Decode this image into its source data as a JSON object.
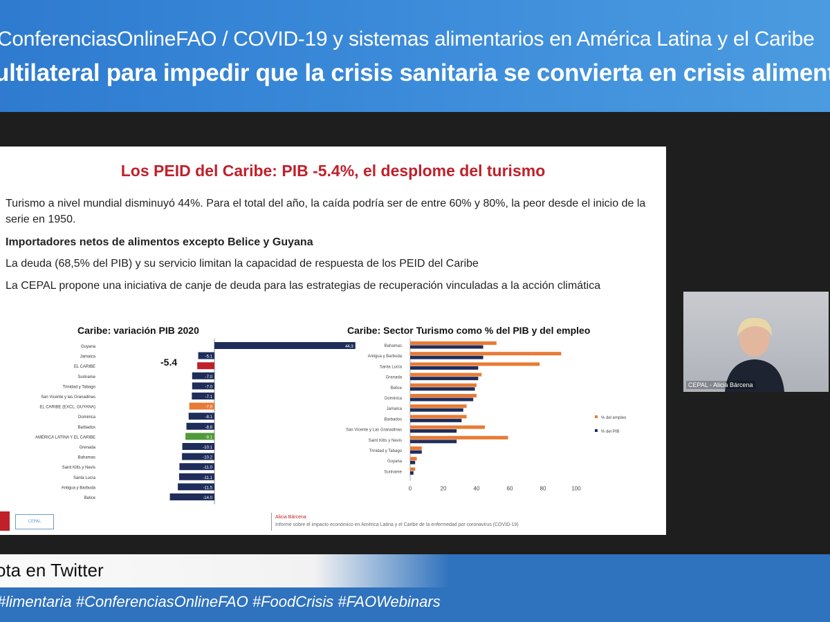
{
  "banner": {
    "line1": "ConferenciasOnlineFAO / COVID-19 y sistemas alimentarios en América Latina y el Caribe",
    "line2": "ultilateral para impedir que la crisis sanitaria se convierta en crisis alimentaria"
  },
  "slide": {
    "title": "Los PEID del Caribe: PIB -5.4%, el desplome del turismo",
    "bullets": [
      "Turismo a nivel mundial disminuyó 44%. Para el total del año, la caída podría ser de entre 60% y 80%, la peor desde el inicio de la serie en 1950.",
      "Importadores netos de alimentos excepto Belice y Guyana",
      "La deuda (68,5% del PIB) y su servicio limitan la capacidad de respuesta de los PEID del Caribe",
      "La CEPAL propone una iniciativa de canje de deuda para las estrategias de recuperación vinculadas a la acción climática"
    ],
    "footer_name": "Alicia Bárcena",
    "footer_source": "Informe sobre el impacto económico en América Latina y el Caribe de la enfermedad por coronavirus (COVID-19)",
    "logo2_text": "CEPAL"
  },
  "chart_data": [
    {
      "type": "bar",
      "title": "Caribe: variación PIB 2020",
      "orientation": "horizontal",
      "categories": [
        "Guyana",
        "Jamaica",
        "EL CARIBE",
        "Suriname",
        "Trinidad y Tabago",
        "San Vicente y las Granadinas",
        "EL CARIBE (EXCL. GUYANA)",
        "Dominica",
        "Barbados",
        "AMÉRICA LATINA Y EL CARIBE",
        "Grenada",
        "Bahamas",
        "Saint Kitts y Nevis",
        "Santa Lucía",
        "Antigua y Barbuda",
        "Belice"
      ],
      "values": [
        44.3,
        -5.1,
        -5.4,
        -7.0,
        -7.0,
        -7.1,
        -7.9,
        -8.1,
        -8.8,
        -9.1,
        -10.1,
        -10.2,
        -11.0,
        -11.1,
        -11.5,
        -14.0
      ],
      "value_labels": [
        "44.3",
        "-5.1",
        "",
        "-7.0",
        "-7.0",
        "-7.1",
        "-7.9",
        "-8.1",
        "-8.8",
        "-9.1",
        "-10.1",
        "-10.2",
        "-11.0",
        "-11.1",
        "-11.5",
        "-14.0"
      ],
      "annotation": "-5.4",
      "colors": [
        "#1f2d5a",
        "#1f2d5a",
        "#c0202a",
        "#1f2d5a",
        "#1f2d5a",
        "#1f2d5a",
        "#e87a35",
        "#1f2d5a",
        "#1f2d5a",
        "#4f9a3a",
        "#1f2d5a",
        "#1f2d5a",
        "#1f2d5a",
        "#1f2d5a",
        "#1f2d5a",
        "#1f2d5a"
      ]
    },
    {
      "type": "bar",
      "title": "Caribe: Sector Turismo como % del PIB y del empleo",
      "orientation": "horizontal",
      "categories": [
        "Bahamas",
        "Antigua y Barbuda",
        "Santa Lucía",
        "Granada",
        "Belice",
        "Dominica",
        "Jamaica",
        "Barbados",
        "San Vicente y Las Granadinas",
        "Saint Kitts y Nevis",
        "Trinidad y Tabago",
        "Guyana",
        "Suriname"
      ],
      "series": [
        {
          "name": "% del empleo",
          "color": "#e87a35",
          "values": [
            52,
            91,
            78,
            43,
            40,
            40,
            34,
            34,
            45,
            59,
            7,
            4,
            3
          ]
        },
        {
          "name": "% del PIB",
          "color": "#1f2d5a",
          "values": [
            44,
            44,
            41,
            41,
            39,
            38,
            32,
            31,
            28,
            28,
            7,
            3,
            2
          ]
        }
      ],
      "xticks": [
        "0",
        "20",
        "40",
        "60",
        "80",
        "100"
      ],
      "xlim": [
        0,
        100
      ],
      "legend_position": "right"
    }
  ],
  "webcam": {
    "caption": "CEPAL - Alicia Bárcena"
  },
  "bottom": {
    "label": "ota en Twitter",
    "hashtags": "#limentaria #ConferenciasOnlineFAO #FoodCrisis #FAOWebinars"
  }
}
